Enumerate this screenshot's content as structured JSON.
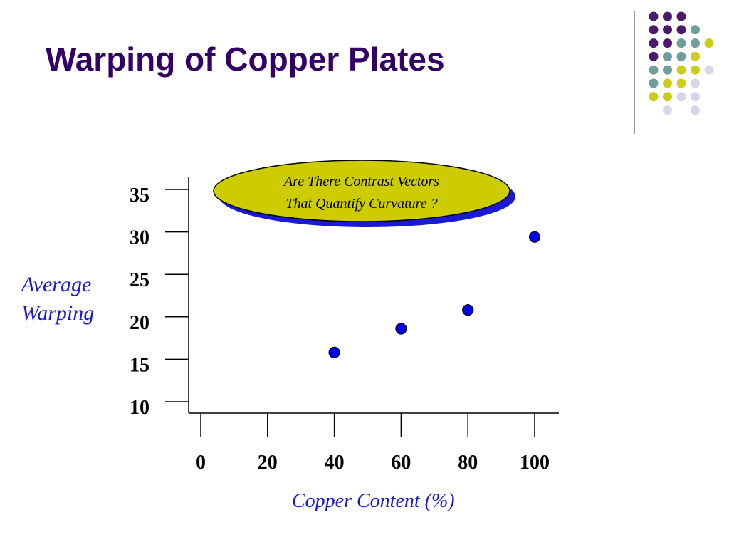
{
  "slide": {
    "title": "Warping of Copper Plates",
    "dot_colors": {
      "purple": "#4b1a6b",
      "teal": "#6e9e9e",
      "yellow": "#cccc1a",
      "lavender": "#d6d6ea"
    }
  },
  "callout": {
    "line1": "Are There Contrast Vectors",
    "line2": "That Quantify Curvature ?",
    "fill": "#cccc00",
    "shadow": "#1a1ad6"
  },
  "chart_data": {
    "type": "scatter",
    "title": "",
    "xlabel": "Copper Content (%)",
    "ylabel_lines": [
      "Average",
      "Warping"
    ],
    "x_ticks": [
      0,
      20,
      40,
      60,
      80,
      100
    ],
    "y_ticks": [
      10,
      15,
      20,
      25,
      30,
      35
    ],
    "xlim": [
      0,
      100
    ],
    "ylim": [
      10,
      35
    ],
    "grid": false,
    "marker_color": "#0000ee",
    "points": [
      {
        "x": 40,
        "y": 15.8
      },
      {
        "x": 60,
        "y": 18.6
      },
      {
        "x": 80,
        "y": 20.8
      },
      {
        "x": 100,
        "y": 29.4
      }
    ]
  }
}
